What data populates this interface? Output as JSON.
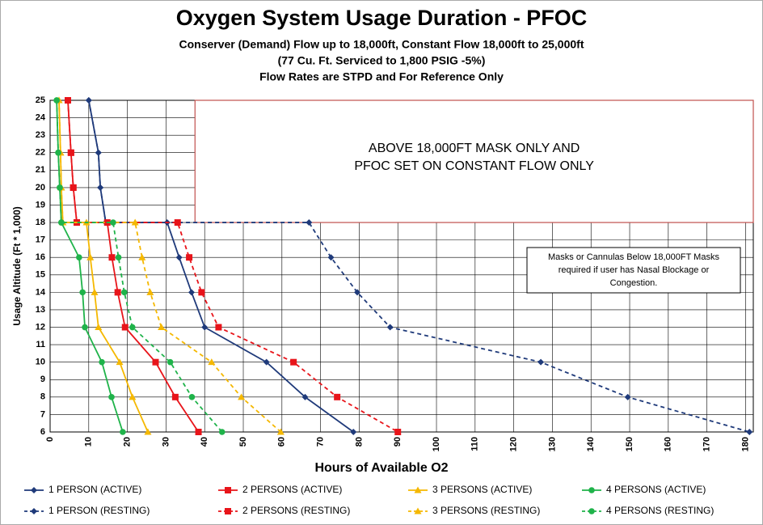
{
  "chart_data": {
    "type": "line",
    "title": "Oxygen System Usage Duration - PFOC",
    "subtitle": [
      "Conserver (Demand) Flow up to 18,000ft, Constant Flow 18,000ft to 25,000ft",
      "(77 Cu. Ft. Serviced to 1,800 PSIG -5%)",
      "Flow Rates are STPD and For Reference Only"
    ],
    "xlabel": "Hours of Available O2",
    "ylabel": "Usage Altitude (Ft * 1,000)",
    "xlim": [
      0,
      182
    ],
    "xticks": [
      0,
      10,
      20,
      30,
      40,
      50,
      60,
      70,
      80,
      90,
      100,
      110,
      120,
      130,
      140,
      150,
      160,
      170,
      180
    ],
    "ylim": [
      6,
      25
    ],
    "yticks": [
      6,
      7,
      8,
      9,
      10,
      11,
      12,
      13,
      14,
      15,
      16,
      17,
      18,
      19,
      20,
      21,
      22,
      23,
      24,
      25
    ],
    "grid": true,
    "annotations": [
      [
        "ABOVE 18,000FT MASK ONLY AND",
        "PFOC SET ON CONSTANT FLOW ONLY"
      ],
      [
        "Masks or Cannulas Below 18,000FT  Masks",
        "required if user has Nasal Blockage or",
        "Congestion."
      ]
    ],
    "series": [
      {
        "name": "1 PERSON (ACTIVE)",
        "color": "#1f3a7a",
        "marker": "diamond",
        "dashed": false,
        "x": [
          10,
          12.5,
          13,
          14.4,
          30.3,
          33.4,
          36.6,
          40,
          56,
          66,
          78.5
        ],
        "y": [
          25,
          22,
          20,
          18,
          18,
          16,
          14,
          12,
          10,
          8,
          6
        ]
      },
      {
        "name": "1 PERSON (RESTING)",
        "color": "#1f3a7a",
        "marker": "diamond",
        "dashed": true,
        "x": [
          10,
          12.5,
          13,
          14.4,
          67,
          72.7,
          79.5,
          88,
          127,
          149.5,
          181
        ],
        "y": [
          25,
          22,
          20,
          18,
          18,
          16,
          14,
          12,
          10,
          8,
          6
        ]
      },
      {
        "name": "2 PERSONS (ACTIVE)",
        "color": "#e8141a",
        "marker": "square",
        "dashed": false,
        "x": [
          4.6,
          5.4,
          6,
          6.9,
          14.8,
          16,
          17.5,
          19.4,
          27.3,
          32.4,
          38.4
        ],
        "y": [
          25,
          22,
          20,
          18,
          18,
          16,
          14,
          12,
          10,
          8,
          6
        ]
      },
      {
        "name": "2 PERSONS (RESTING)",
        "color": "#e8141a",
        "marker": "square",
        "dashed": true,
        "x": [
          4.6,
          5.4,
          6,
          6.9,
          33,
          36,
          39.2,
          43.6,
          63,
          74.3,
          90
        ],
        "y": [
          25,
          22,
          20,
          18,
          18,
          16,
          14,
          12,
          10,
          8,
          6
        ]
      },
      {
        "name": "3 PERSONS (ACTIVE)",
        "color": "#f5b800",
        "marker": "triangle",
        "dashed": false,
        "x": [
          2.3,
          2.7,
          2.9,
          3.3,
          9.4,
          10.4,
          11.5,
          12.5,
          18,
          21.3,
          25.3
        ],
        "y": [
          25,
          22,
          20,
          18,
          18,
          16,
          14,
          12,
          10,
          8,
          6
        ]
      },
      {
        "name": "3 PERSONS (RESTING)",
        "color": "#f5b800",
        "marker": "triangle",
        "dashed": true,
        "x": [
          2.3,
          2.7,
          2.9,
          3.3,
          22,
          23.8,
          25.9,
          28.8,
          41.8,
          49.5,
          59.7
        ],
        "y": [
          25,
          22,
          20,
          18,
          18,
          16,
          14,
          12,
          10,
          8,
          6
        ]
      },
      {
        "name": "4 PERSONS (ACTIVE)",
        "color": "#1fb34a",
        "marker": "circle",
        "dashed": false,
        "x": [
          1.7,
          2.1,
          2.5,
          2.9,
          7.5,
          8.4,
          9,
          13.4,
          15.9,
          18.8
        ],
        "y": [
          25,
          22,
          20,
          18,
          16,
          14,
          12,
          10,
          8,
          6
        ]
      },
      {
        "name": "4 PERSONS (RESTING)",
        "color": "#1fb34a",
        "marker": "circle",
        "dashed": true,
        "x": [
          1.7,
          2.1,
          2.5,
          2.9,
          16.3,
          17.7,
          19.2,
          21.3,
          31.1,
          36.7,
          44.5
        ],
        "y": [
          25,
          22,
          20,
          18,
          18,
          16,
          14,
          12,
          10,
          8,
          6
        ]
      }
    ]
  }
}
